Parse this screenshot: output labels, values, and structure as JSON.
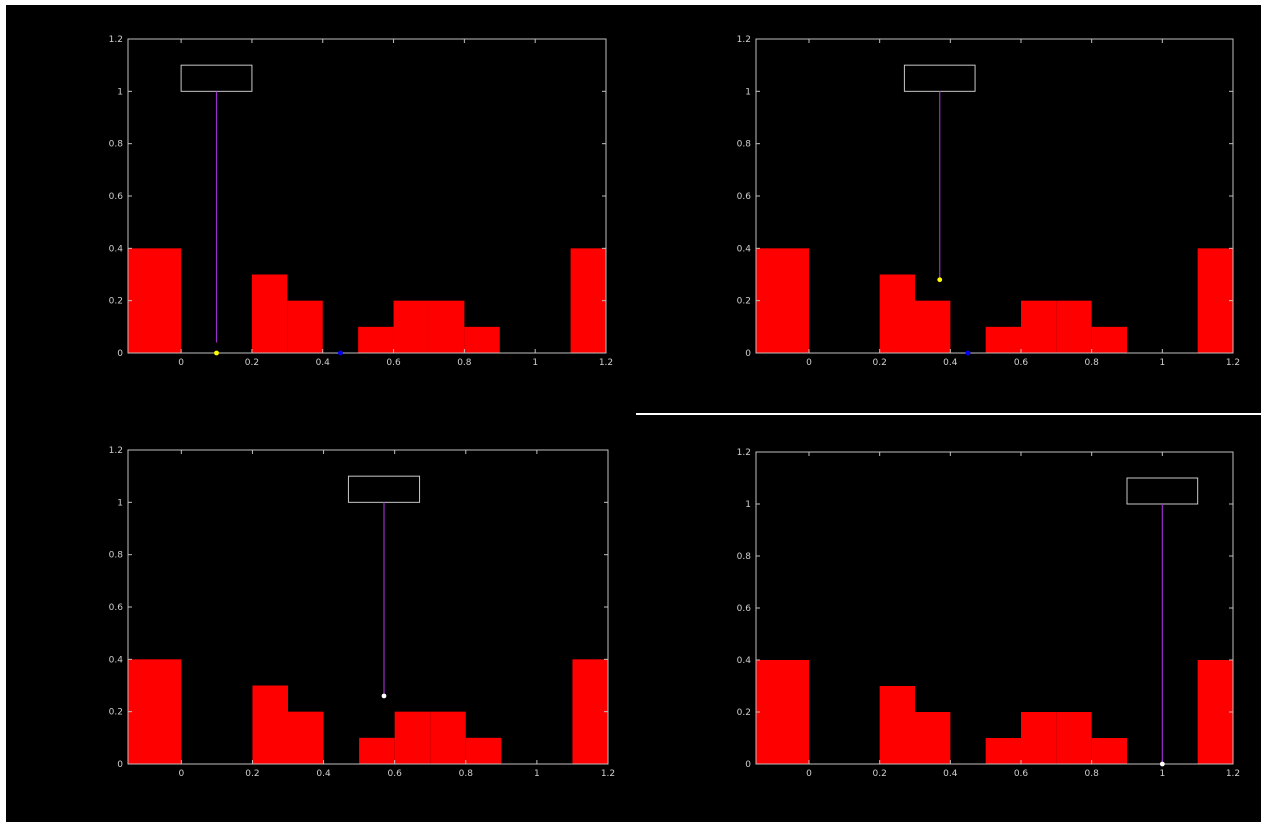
{
  "chart_data": [
    {
      "type": "bar",
      "bin_edges": [
        -0.15,
        0,
        0.2,
        0.3,
        0.4,
        0.5,
        0.6,
        0.7,
        0.8,
        0.9,
        1.1,
        1.2
      ],
      "values": [
        0.4,
        0,
        0.3,
        0.2,
        0,
        0.1,
        0.2,
        0.2,
        0.1,
        0,
        0.4
      ],
      "xlim": [
        -0.15,
        1.2
      ],
      "ylim": [
        0,
        1.2
      ],
      "xticks": [
        "0",
        "0.2",
        "0.4",
        "0.6",
        "0.8",
        "1",
        "1.2"
      ],
      "yticks": [
        "0",
        "0.2",
        "0.4",
        "0.6",
        "0.8",
        "1",
        "1.2"
      ],
      "annotation_box": {
        "x0": 0,
        "x1": 0.2,
        "y0": 1.0,
        "y1": 1.1
      },
      "pointer": {
        "x": 0.1,
        "y_top": 1.0,
        "y_end": 0.04
      },
      "markers": [
        {
          "x": 0.1,
          "y": 0.0,
          "color": "#ffff00"
        },
        {
          "x": 0.45,
          "y": 0.0,
          "color": "#0000ff"
        }
      ]
    },
    {
      "type": "bar",
      "bin_edges": [
        -0.15,
        0,
        0.2,
        0.3,
        0.4,
        0.5,
        0.6,
        0.7,
        0.8,
        0.9,
        1.1,
        1.2
      ],
      "values": [
        0.4,
        0,
        0.3,
        0.2,
        0,
        0.1,
        0.2,
        0.2,
        0.1,
        0,
        0.4
      ],
      "xlim": [
        -0.15,
        1.2
      ],
      "ylim": [
        0,
        1.2
      ],
      "xticks": [
        "0",
        "0.2",
        "0.4",
        "0.6",
        "0.8",
        "1",
        "1.2"
      ],
      "yticks": [
        "0",
        "0.2",
        "0.4",
        "0.6",
        "0.8",
        "1",
        "1.2"
      ],
      "annotation_box": {
        "x0": 0.27,
        "x1": 0.47,
        "y0": 1.0,
        "y1": 1.1
      },
      "pointer": {
        "x": 0.37,
        "y_top": 1.0,
        "y_end": 0.28
      },
      "markers": [
        {
          "x": 0.37,
          "y": 0.28,
          "color": "#ffff00"
        },
        {
          "x": 0.45,
          "y": 0.0,
          "color": "#0000ff"
        }
      ]
    },
    {
      "type": "bar",
      "bin_edges": [
        -0.15,
        0,
        0.2,
        0.3,
        0.4,
        0.5,
        0.6,
        0.7,
        0.8,
        0.9,
        1.1,
        1.2
      ],
      "values": [
        0.4,
        0,
        0.3,
        0.2,
        0,
        0.1,
        0.2,
        0.2,
        0.1,
        0,
        0.4
      ],
      "xlim": [
        -0.15,
        1.2
      ],
      "ylim": [
        0,
        1.2
      ],
      "xticks": [
        "0",
        "0.2",
        "0.4",
        "0.6",
        "0.8",
        "1",
        "1.2"
      ],
      "yticks": [
        "0",
        "0.2",
        "0.4",
        "0.6",
        "0.8",
        "1",
        "1.2"
      ],
      "annotation_box": {
        "x0": 0.47,
        "x1": 0.67,
        "y0": 1.0,
        "y1": 1.1
      },
      "pointer": {
        "x": 0.57,
        "y_top": 1.0,
        "y_end": 0.26
      },
      "markers": [
        {
          "x": 0.57,
          "y": 0.26,
          "color": "#ffffff"
        }
      ]
    },
    {
      "type": "bar",
      "bin_edges": [
        -0.15,
        0,
        0.2,
        0.3,
        0.4,
        0.5,
        0.6,
        0.7,
        0.8,
        0.9,
        1.1,
        1.2
      ],
      "values": [
        0.4,
        0,
        0.3,
        0.2,
        0,
        0.1,
        0.2,
        0.2,
        0.1,
        0,
        0.4
      ],
      "xlim": [
        -0.15,
        1.2
      ],
      "ylim": [
        0,
        1.2
      ],
      "xticks": [
        "0",
        "0.2",
        "0.4",
        "0.6",
        "0.8",
        "1",
        "1.2"
      ],
      "yticks": [
        "0",
        "0.2",
        "0.4",
        "0.6",
        "0.8",
        "1",
        "1.2"
      ],
      "annotation_box": {
        "x0": 0.9,
        "x1": 1.1,
        "y0": 1.0,
        "y1": 1.1
      },
      "pointer": {
        "x": 1.0,
        "y_top": 1.0,
        "y_end": 0.0
      },
      "markers": [
        {
          "x": 1.0,
          "y": 0.0,
          "color": "#ffffff"
        }
      ]
    }
  ],
  "colors": {
    "background": "#000000",
    "bar_fill": "#ff0000",
    "axes": "#c0c0c0",
    "tick_label": "#d0d0d0",
    "pointer_line": "#9b30c8",
    "annotation_box": "#c8c8c8",
    "divider": "#ffffff"
  }
}
